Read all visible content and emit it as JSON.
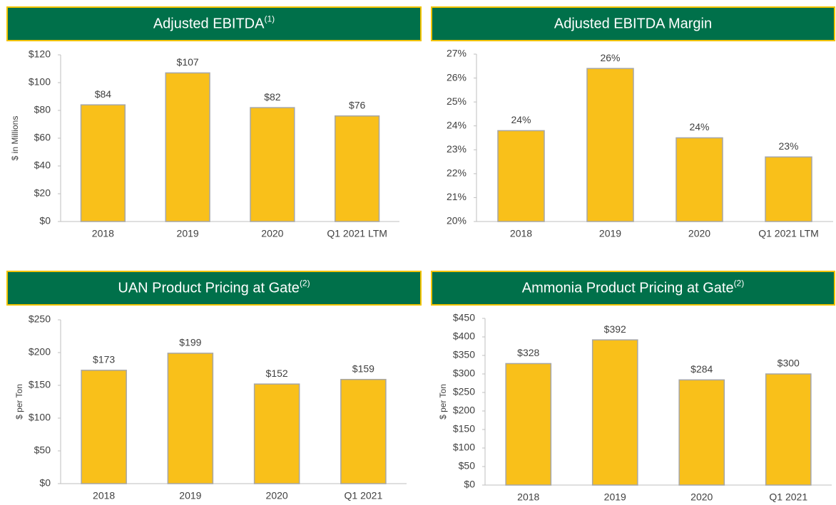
{
  "chart_data": [
    {
      "type": "bar",
      "title": "Adjusted EBITDA",
      "title_superscript": "(1)",
      "ylabel": "$ in Millions",
      "categories": [
        "2018",
        "2019",
        "2020",
        "Q1 2021 LTM"
      ],
      "values": [
        84,
        107,
        82,
        76
      ],
      "value_labels": [
        "$84",
        "$107",
        "$82",
        "$76"
      ],
      "color": "#f9c01a",
      "ylim": [
        0,
        120
      ],
      "yticks": [
        {
          "value": 0,
          "label": "$0"
        },
        {
          "value": 20,
          "label": "$20"
        },
        {
          "value": 40,
          "label": "$40"
        },
        {
          "value": 60,
          "label": "$60"
        },
        {
          "value": 80,
          "label": "$80"
        },
        {
          "value": 100,
          "label": "$100"
        },
        {
          "value": 120,
          "label": "$120"
        }
      ]
    },
    {
      "type": "bar",
      "title": "Adjusted EBITDA Margin",
      "categories": [
        "2018",
        "2019",
        "2020",
        "Q1 2021 LTM"
      ],
      "values": [
        23.8,
        26.4,
        23.5,
        22.7
      ],
      "value_labels": [
        "24%",
        "26%",
        "24%",
        "23%"
      ],
      "color": "#f9c01a",
      "ylim": [
        20,
        27
      ],
      "yticks": [
        {
          "value": 20,
          "label": "20%"
        },
        {
          "value": 21,
          "label": "21%"
        },
        {
          "value": 22,
          "label": "22%"
        },
        {
          "value": 23,
          "label": "23%"
        },
        {
          "value": 24,
          "label": "24%"
        },
        {
          "value": 25,
          "label": "25%"
        },
        {
          "value": 26,
          "label": "26%"
        },
        {
          "value": 27,
          "label": "27%"
        }
      ]
    },
    {
      "type": "bar",
      "title": "UAN Product Pricing at Gate",
      "title_superscript": "(2)",
      "ylabel": "$ per Ton",
      "categories": [
        "2018",
        "2019",
        "2020",
        "Q1 2021"
      ],
      "values": [
        173,
        199,
        152,
        159
      ],
      "value_labels": [
        "$173",
        "$199",
        "$152",
        "$159"
      ],
      "color": "#f9c01a",
      "ylim": [
        0,
        250
      ],
      "yticks": [
        {
          "value": 0,
          "label": "$0"
        },
        {
          "value": 50,
          "label": "$50"
        },
        {
          "value": 100,
          "label": "$100"
        },
        {
          "value": 150,
          "label": "$150"
        },
        {
          "value": 200,
          "label": "$200"
        },
        {
          "value": 250,
          "label": "$250"
        }
      ]
    },
    {
      "type": "bar",
      "title": "Ammonia Product Pricing at Gate",
      "title_superscript": "(2)",
      "ylabel": "$ per Ton",
      "categories": [
        "2018",
        "2019",
        "2020",
        "Q1 2021"
      ],
      "values": [
        328,
        392,
        284,
        300
      ],
      "value_labels": [
        "$328",
        "$392",
        "$284",
        "$300"
      ],
      "color": "#f9c01a",
      "ylim": [
        0,
        450
      ],
      "yticks": [
        {
          "value": 0,
          "label": "$0"
        },
        {
          "value": 50,
          "label": "$50"
        },
        {
          "value": 100,
          "label": "$100"
        },
        {
          "value": 150,
          "label": "$150"
        },
        {
          "value": 200,
          "label": "$200"
        },
        {
          "value": 250,
          "label": "$250"
        },
        {
          "value": 300,
          "label": "$300"
        },
        {
          "value": 350,
          "label": "$350"
        },
        {
          "value": 400,
          "label": "$400"
        },
        {
          "value": 450,
          "label": "$450"
        }
      ]
    }
  ]
}
